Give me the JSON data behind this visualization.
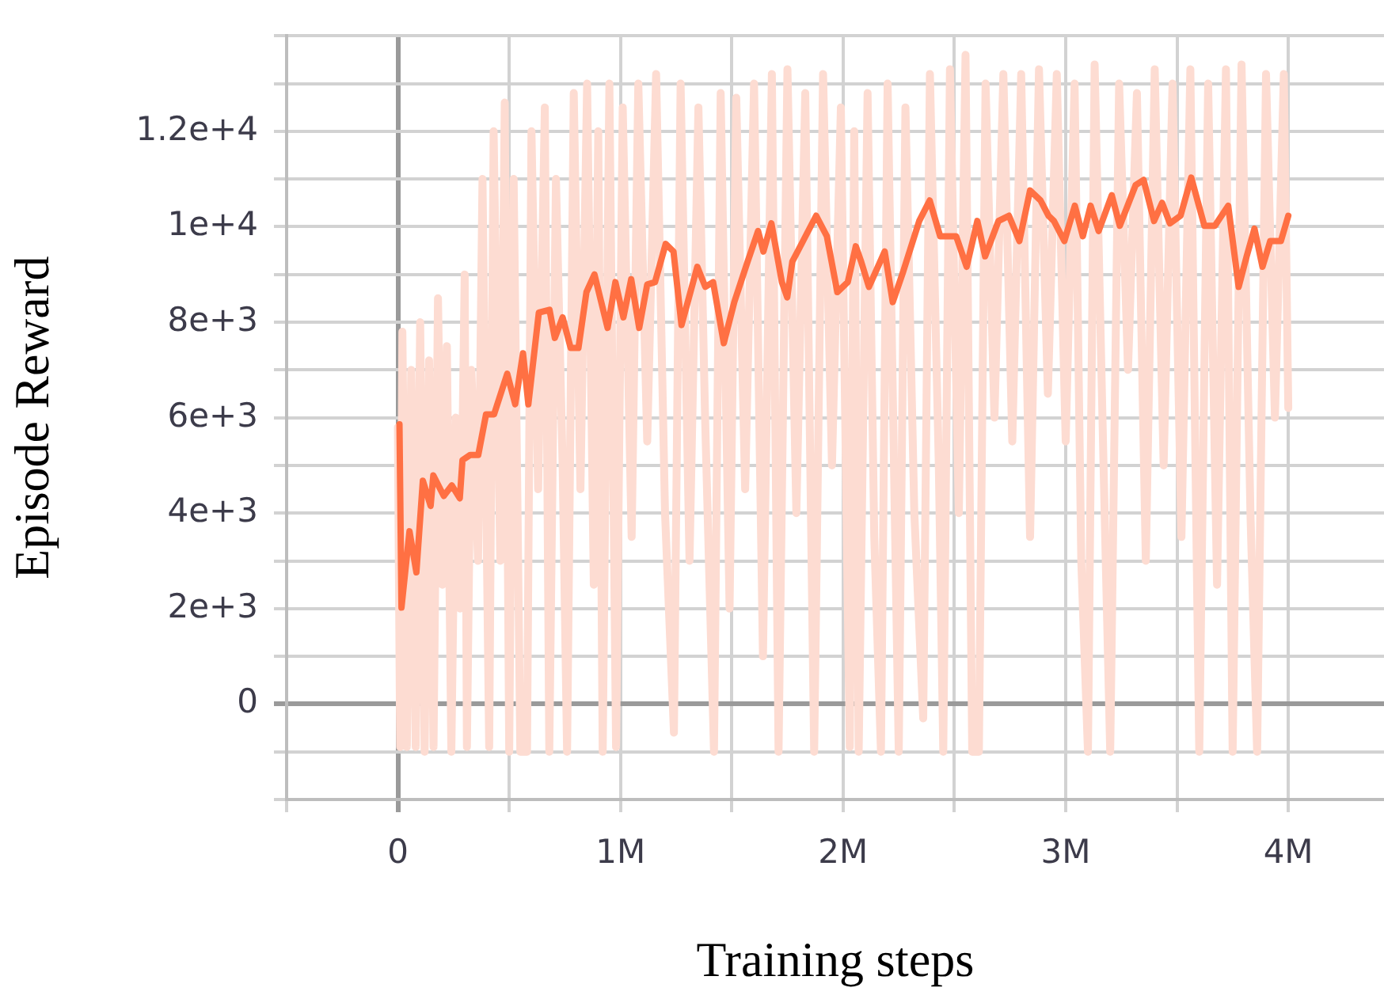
{
  "chart_data": {
    "type": "line",
    "xlabel": "Training steps",
    "ylabel": "Episode Reward",
    "xlim": [
      -500000,
      4430000
    ],
    "xticks": [
      {
        "value": -500000,
        "label": null
      },
      0,
      {
        "value": 500000,
        "label": null
      },
      {
        "value": 1000000,
        "label": "1M"
      },
      {
        "value": 1500000,
        "label": null
      },
      {
        "value": 2000000,
        "label": "2M"
      },
      {
        "value": 2500000,
        "label": null
      },
      {
        "value": 3000000,
        "label": "3M"
      },
      {
        "value": 3500000,
        "label": null
      },
      {
        "value": 4000000,
        "label": "4M"
      }
    ],
    "ylim": [
      -2000,
      14000
    ],
    "yticks": [
      {
        "value": -2000,
        "label": null
      },
      {
        "value": -1000,
        "label": null
      },
      0,
      {
        "value": 1000,
        "label": null
      },
      {
        "value": 2000,
        "label": "2e+3"
      },
      {
        "value": 3000,
        "label": null
      },
      {
        "value": 4000,
        "label": "4e+3"
      },
      {
        "value": 5000,
        "label": null
      },
      {
        "value": 6000,
        "label": "6e+3"
      },
      {
        "value": 7000,
        "label": null
      },
      {
        "value": 8000,
        "label": "8e+3"
      },
      {
        "value": 9000,
        "label": null
      },
      {
        "value": 10000,
        "label": "1e+4"
      },
      {
        "value": 11000,
        "label": null
      },
      {
        "value": 12000,
        "label": "1.2e+4"
      },
      {
        "value": 13000,
        "label": null
      },
      {
        "value": 14000,
        "label": null
      }
    ],
    "grid": true,
    "legend": false,
    "marker": "none",
    "line_style": "solid",
    "series": [
      {
        "color": "#ff7043",
        "x": [
          7000,
          16000,
          52000,
          83000,
          112000,
          147000,
          159000,
          206000,
          242000,
          278000,
          290000,
          325000,
          361000,
          396000,
          432000,
          491000,
          527000,
          562000,
          586000,
          633000,
          681000,
          705000,
          740000,
          776000,
          811000,
          847000,
          883000,
          942000,
          977000,
          1013000,
          1048000,
          1084000,
          1120000,
          1155000,
          1203000,
          1238000,
          1274000,
          1345000,
          1381000,
          1416000,
          1464000,
          1511000,
          1571000,
          1618000,
          1642000,
          1678000,
          1725000,
          1749000,
          1772000,
          1820000,
          1879000,
          1927000,
          1974000,
          2021000,
          2057000,
          2081000,
          2116000,
          2187000,
          2223000,
          2270000,
          2342000,
          2389000,
          2436000,
          2508000,
          2555000,
          2603000,
          2638000,
          2698000,
          2745000,
          2792000,
          2840000,
          2887000,
          2923000,
          2947000,
          2994000,
          3041000,
          3077000,
          3112000,
          3148000,
          3207000,
          3243000,
          3314000,
          3350000,
          3397000,
          3433000,
          3468000,
          3516000,
          3564000,
          3623000,
          3670000,
          3730000,
          3777000,
          3813000,
          3848000,
          3884000,
          3919000,
          3967000,
          4000000
        ],
        "values": [
          5860,
          2020,
          3620,
          2760,
          4680,
          4150,
          4790,
          4360,
          4580,
          4310,
          5110,
          5220,
          5220,
          6070,
          6070,
          6920,
          6280,
          7350,
          6280,
          8200,
          8260,
          7670,
          8100,
          7460,
          7460,
          8630,
          9000,
          7880,
          8840,
          8100,
          8900,
          7880,
          8790,
          8840,
          9640,
          9480,
          7940,
          9160,
          8740,
          8840,
          7560,
          8420,
          9270,
          9910,
          9480,
          10070,
          8840,
          8520,
          9270,
          9700,
          10230,
          9800,
          8630,
          8840,
          9590,
          9270,
          8740,
          9480,
          8420,
          9060,
          10120,
          10550,
          9800,
          9800,
          9160,
          10120,
          9380,
          10120,
          10230,
          9700,
          10760,
          10550,
          10230,
          10120,
          9700,
          10440,
          9800,
          10440,
          9910,
          10660,
          10020,
          10870,
          10980,
          10120,
          10500,
          10070,
          10230,
          11030,
          10020,
          10020,
          10440,
          8740,
          9380,
          9960,
          9160,
          9700,
          9700,
          10230
        ]
      },
      {
        "color": "#fddcd2",
        "x": [
          0,
          10000,
          20000,
          40000,
          60000,
          80000,
          100000,
          120000,
          140000,
          160000,
          180000,
          200000,
          220000,
          240000,
          260000,
          280000,
          300000,
          310000,
          330000,
          360000,
          380000,
          410000,
          430000,
          460000,
          480000,
          500000,
          520000,
          550000,
          580000,
          600000,
          630000,
          660000,
          680000,
          710000,
          740000,
          760000,
          790000,
          820000,
          850000,
          880000,
          900000,
          920000,
          950000,
          980000,
          1010000,
          1050000,
          1080000,
          1120000,
          1160000,
          1200000,
          1240000,
          1270000,
          1310000,
          1350000,
          1380000,
          1420000,
          1450000,
          1490000,
          1520000,
          1560000,
          1600000,
          1640000,
          1680000,
          1710000,
          1750000,
          1790000,
          1830000,
          1870000,
          1910000,
          1950000,
          1990000,
          2030000,
          2050000,
          2070000,
          2110000,
          2140000,
          2170000,
          2200000,
          2250000,
          2280000,
          2320000,
          2360000,
          2390000,
          2430000,
          2450000,
          2480000,
          2520000,
          2550000,
          2580000,
          2610000,
          2640000,
          2680000,
          2720000,
          2760000,
          2800000,
          2840000,
          2880000,
          2920000,
          2960000,
          3000000,
          3040000,
          3070000,
          3100000,
          3130000,
          3170000,
          3200000,
          3240000,
          3280000,
          3320000,
          3360000,
          3400000,
          3440000,
          3480000,
          3520000,
          3560000,
          3600000,
          3640000,
          3680000,
          3720000,
          3750000,
          3790000,
          3830000,
          3860000,
          3900000,
          3940000,
          3980000,
          4000000
        ],
        "values": [
          5800,
          -900,
          7800,
          -900,
          7000,
          -900,
          8000,
          -1000,
          7200,
          -900,
          8500,
          2500,
          7500,
          -1000,
          6000,
          2000,
          9000,
          -900,
          7000,
          3000,
          11000,
          -900,
          12000,
          3000,
          12600,
          -1000,
          11000,
          -1000,
          -1000,
          12000,
          4500,
          12500,
          -1000,
          11000,
          5000,
          -1000,
          12800,
          4500,
          13000,
          2500,
          12000,
          -1000,
          13000,
          -900,
          12500,
          3500,
          13000,
          5500,
          13200,
          4000,
          -600,
          13000,
          3000,
          12500,
          6000,
          -1000,
          12800,
          2000,
          12700,
          4500,
          13000,
          1000,
          13200,
          -1000,
          13300,
          4000,
          12800,
          -1000,
          13200,
          5000,
          12500,
          -900,
          12000,
          -1000,
          12800,
          3500,
          -1000,
          13000,
          -1000,
          12500,
          4000,
          -300,
          13200,
          5000,
          -1000,
          13300,
          4000,
          13600,
          -1000,
          -1000,
          13000,
          6000,
          13200,
          5500,
          13200,
          3500,
          13300,
          6500,
          13200,
          5500,
          13000,
          3000,
          -1000,
          13400,
          5000,
          -1000,
          13000,
          7000,
          12800,
          3000,
          13300,
          5000,
          13000,
          3500,
          13300,
          -1000,
          13000,
          2500,
          13300,
          -1000,
          13400,
          4000,
          -1000,
          13200,
          6000,
          13200,
          6200
        ]
      }
    ]
  }
}
